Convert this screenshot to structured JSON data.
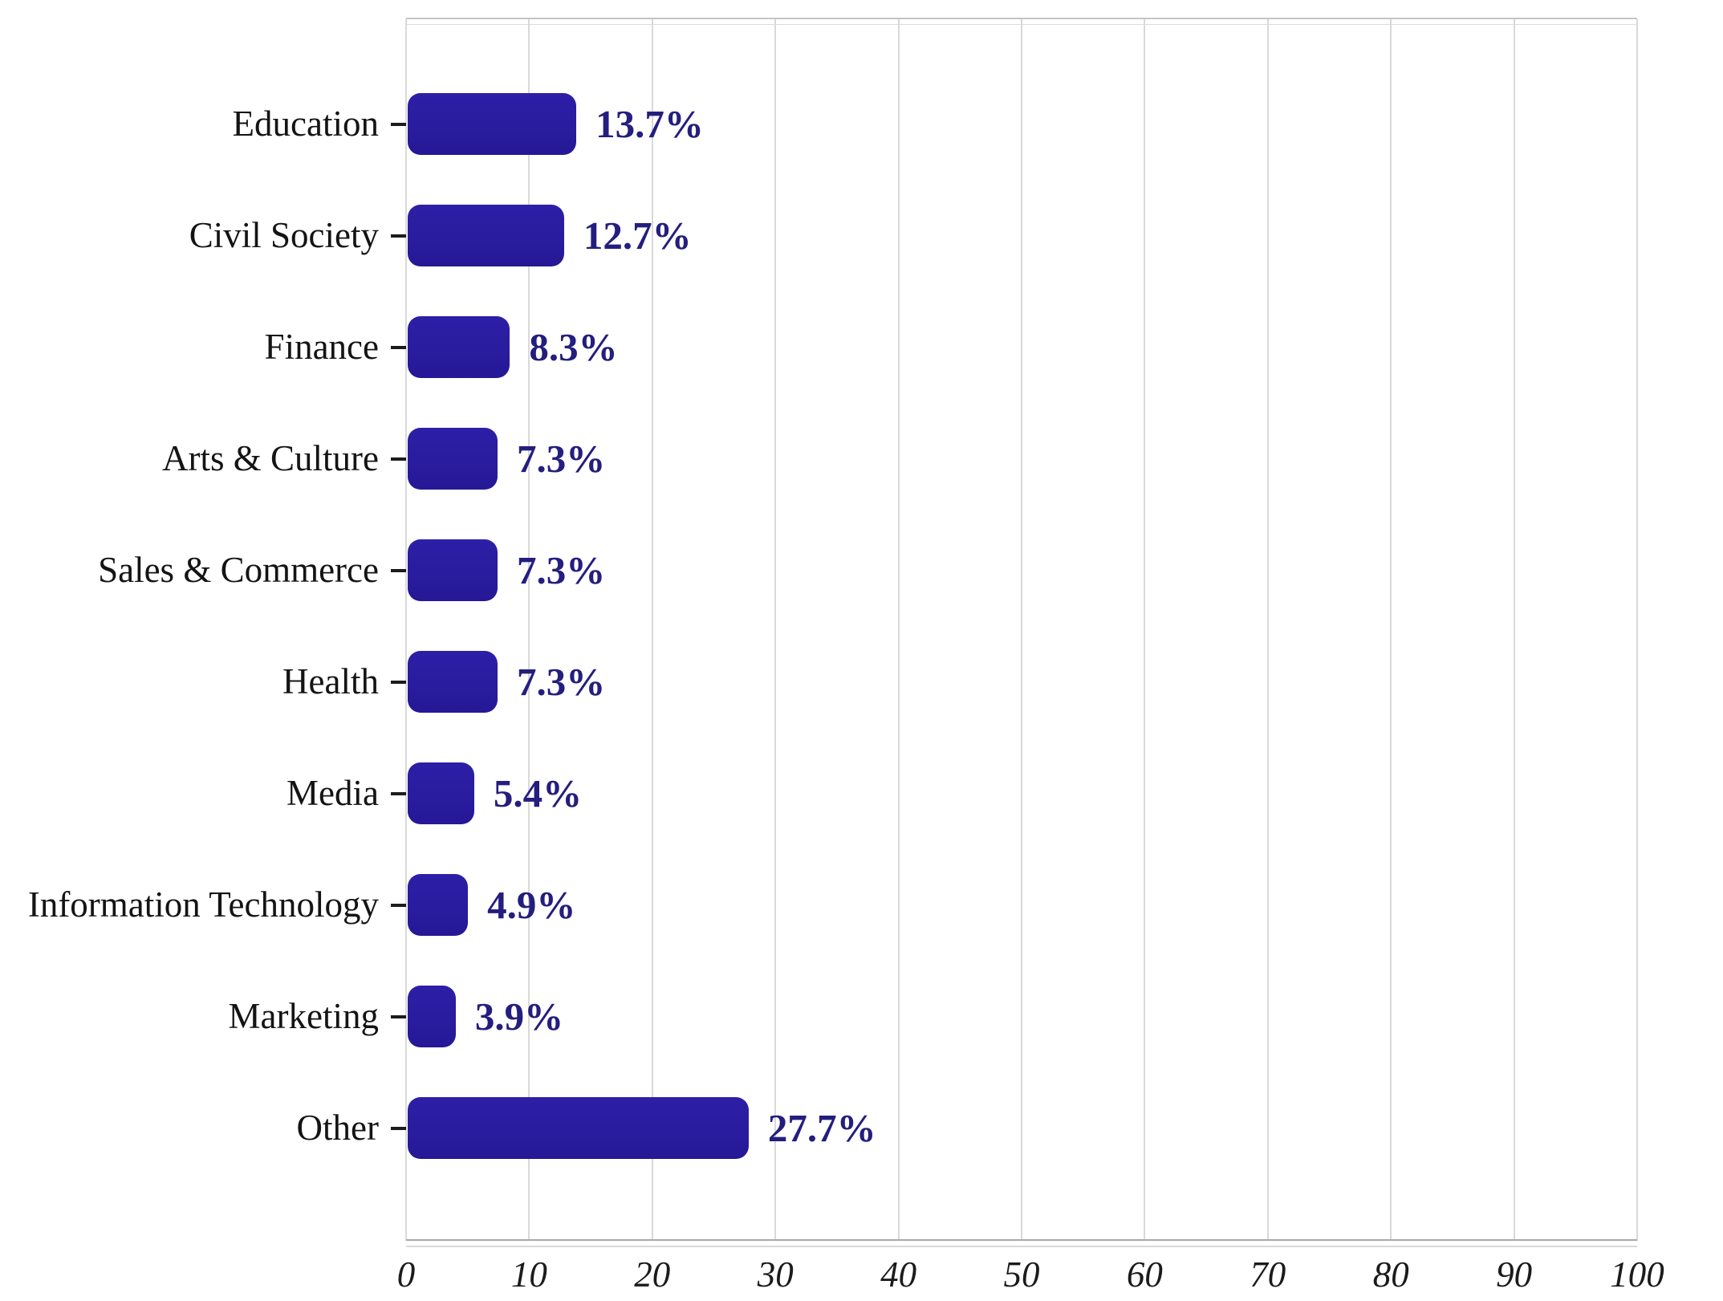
{
  "chart_data": {
    "type": "bar",
    "orientation": "horizontal",
    "title": "",
    "xlabel": "",
    "ylabel": "",
    "categories": [
      "Education",
      "Civil Society",
      "Finance",
      "Arts & Culture",
      "Sales & Commerce",
      "Health",
      "Media",
      "Information Technology",
      "Marketing",
      "Other"
    ],
    "values": [
      13.7,
      12.7,
      8.3,
      7.3,
      7.3,
      7.3,
      5.4,
      4.9,
      3.9,
      27.7
    ],
    "value_labels": [
      "13.7%",
      "12.7%",
      "8.3%",
      "7.3%",
      "7.3%",
      "7.3%",
      "5.4%",
      "4.9%",
      "3.9%",
      "27.7%"
    ],
    "xlim": [
      0,
      100
    ],
    "xticks": [
      0,
      10,
      20,
      30,
      40,
      50,
      60,
      70,
      80,
      90,
      100
    ],
    "grid": "vertical gridlines at every x tick",
    "legend_position": "none",
    "colors": {
      "bar": "#2a1c9e",
      "value_label": "#241e7e",
      "category_label": "#141414",
      "x_tick_label": "#1b1b1b",
      "y_tick_mark": "#1c1c1c",
      "gridline": "#d9d9d9",
      "axis_line": "#a8a8a8",
      "background": "#ffffff"
    }
  }
}
